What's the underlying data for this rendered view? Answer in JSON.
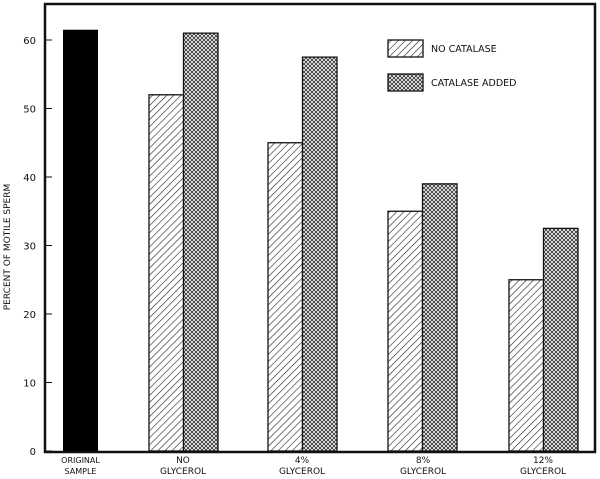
{
  "chart_data": {
    "type": "bar",
    "title": "",
    "xlabel": "",
    "ylabel": "PERCENT OF MOTILE SPERM",
    "ylim": [
      0,
      65
    ],
    "yticks": [
      0,
      10,
      20,
      30,
      40,
      50,
      60
    ],
    "grid": false,
    "legend_placement": "top-right",
    "categories": [
      [
        "ORIGINAL",
        "SAMPLE"
      ],
      [
        "NO",
        "GLYCEROL"
      ],
      [
        "4%",
        "GLYCEROL"
      ],
      [
        "8%",
        "GLYCEROL"
      ],
      [
        "12%",
        "GLYCEROL"
      ]
    ],
    "original_sample": {
      "value": 61.5,
      "fill": "solid black"
    },
    "series": [
      {
        "name": "NO CATALASE",
        "pattern": "diagonal-hatch",
        "values": [
          null,
          52,
          45,
          35,
          25
        ]
      },
      {
        "name": "CATALASE ADDED",
        "pattern": "cross-hatch",
        "values": [
          null,
          61,
          57.5,
          39,
          32.5
        ]
      }
    ],
    "colors": {
      "ink": "#111111",
      "background": "#ffffff"
    }
  }
}
